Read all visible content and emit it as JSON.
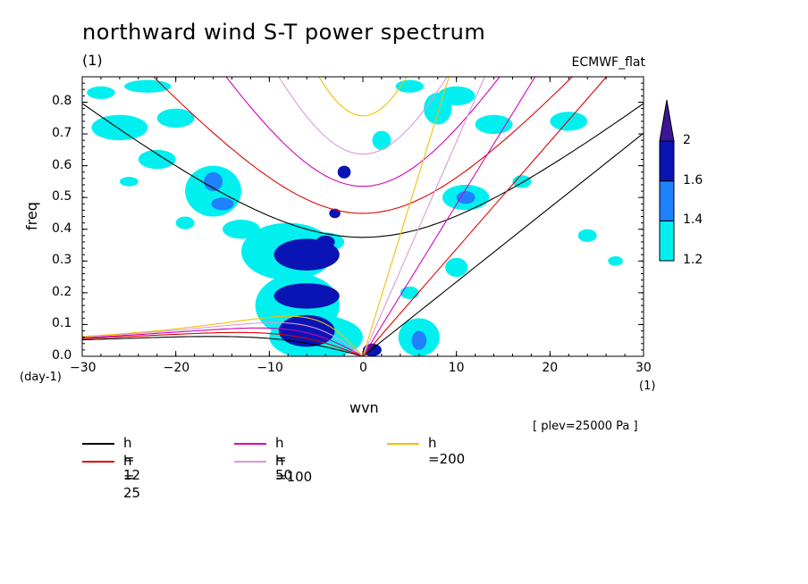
{
  "chart_data": {
    "type": "contour",
    "title": "northward wind S-T power spectrum",
    "units_label": "(1)",
    "source": "ECMWF_flat",
    "plev": "[ plev=25000 Pa ]",
    "xlabel": "wvn",
    "ylabel": "freq",
    "x_unit": "(1)",
    "y_unit": "(day-1)",
    "xlim": [
      -30,
      30
    ],
    "ylim": [
      0,
      0.88
    ],
    "xticks": [
      -30,
      -20,
      -10,
      0,
      10,
      20,
      30
    ],
    "yticks": [
      0.0,
      0.1,
      0.2,
      0.3,
      0.4,
      0.5,
      0.6,
      0.7,
      0.8
    ],
    "colorbar": {
      "levels": [
        "1.2",
        "1.4",
        "1.6",
        "2"
      ],
      "colors": [
        "#00f0f0",
        "#1e82ff",
        "#0a14b4",
        "#3c1496"
      ]
    },
    "dispersion_curves": [
      {
        "label": "h = 12",
        "h": 12,
        "color": "#000000"
      },
      {
        "label": "h = 25",
        "h": 25,
        "color": "#e00000"
      },
      {
        "label": "h = 50",
        "h": 50,
        "color": "#d400b4"
      },
      {
        "label": "h =100",
        "h": 100,
        "color": "#d89bd8"
      },
      {
        "label": "h =200",
        "h": 200,
        "color": "#f0c000"
      }
    ],
    "blobs": [
      {
        "x": -6,
        "y": 0.32,
        "rx": 3.5,
        "ry": 0.05,
        "level": 3
      },
      {
        "x": -6,
        "y": 0.19,
        "rx": 3.5,
        "ry": 0.04,
        "level": 3
      },
      {
        "x": -6,
        "y": 0.08,
        "rx": 3.0,
        "ry": 0.05,
        "level": 3
      },
      {
        "x": -4,
        "y": 0.36,
        "rx": 1.0,
        "ry": 0.02,
        "level": 3
      },
      {
        "x": -2,
        "y": 0.58,
        "rx": 0.7,
        "ry": 0.02,
        "level": 3
      },
      {
        "x": -3,
        "y": 0.45,
        "rx": 0.6,
        "ry": 0.015,
        "level": 3
      },
      {
        "x": 1,
        "y": 0.02,
        "rx": 1.0,
        "ry": 0.02,
        "level": 3
      },
      {
        "x": 6,
        "y": 0.05,
        "rx": 0.8,
        "ry": 0.03,
        "level": 2
      },
      {
        "x": -16,
        "y": 0.55,
        "rx": 1.0,
        "ry": 0.03,
        "level": 2
      },
      {
        "x": -15,
        "y": 0.48,
        "rx": 1.2,
        "ry": 0.02,
        "level": 2
      },
      {
        "x": 11,
        "y": 0.5,
        "rx": 1.0,
        "ry": 0.02,
        "level": 2
      },
      {
        "x": -8,
        "y": 0.33,
        "rx": 5.0,
        "ry": 0.09,
        "level": 1
      },
      {
        "x": -7,
        "y": 0.16,
        "rx": 4.5,
        "ry": 0.1,
        "level": 1
      },
      {
        "x": -5,
        "y": 0.06,
        "rx": 5.0,
        "ry": 0.07,
        "level": 1
      },
      {
        "x": -4,
        "y": 0.36,
        "rx": 2.0,
        "ry": 0.03,
        "level": 1
      },
      {
        "x": 6,
        "y": 0.06,
        "rx": 2.2,
        "ry": 0.06,
        "level": 1
      },
      {
        "x": -16,
        "y": 0.52,
        "rx": 3.0,
        "ry": 0.08,
        "level": 1
      },
      {
        "x": -22,
        "y": 0.62,
        "rx": 2.0,
        "ry": 0.03,
        "level": 1
      },
      {
        "x": -26,
        "y": 0.72,
        "rx": 3.0,
        "ry": 0.04,
        "level": 1
      },
      {
        "x": -23,
        "y": 0.85,
        "rx": 2.5,
        "ry": 0.02,
        "level": 1
      },
      {
        "x": 11,
        "y": 0.5,
        "rx": 2.5,
        "ry": 0.04,
        "level": 1
      },
      {
        "x": 8,
        "y": 0.78,
        "rx": 1.5,
        "ry": 0.05,
        "level": 1
      },
      {
        "x": 5,
        "y": 0.85,
        "rx": 1.5,
        "ry": 0.02,
        "level": 1
      },
      {
        "x": 10,
        "y": 0.82,
        "rx": 2.0,
        "ry": 0.03,
        "level": 1
      },
      {
        "x": 14,
        "y": 0.73,
        "rx": 2.0,
        "ry": 0.03,
        "level": 1
      },
      {
        "x": 22,
        "y": 0.74,
        "rx": 2.0,
        "ry": 0.03,
        "level": 1
      },
      {
        "x": 5,
        "y": 0.2,
        "rx": 1.0,
        "ry": 0.02,
        "level": 1
      },
      {
        "x": 10,
        "y": 0.28,
        "rx": 1.2,
        "ry": 0.03,
        "level": 1
      },
      {
        "x": 2,
        "y": 0.68,
        "rx": 1.0,
        "ry": 0.03,
        "level": 1
      },
      {
        "x": -28,
        "y": 0.83,
        "rx": 1.5,
        "ry": 0.02,
        "level": 1
      },
      {
        "x": -20,
        "y": 0.75,
        "rx": 2.0,
        "ry": 0.03,
        "level": 1
      },
      {
        "x": -13,
        "y": 0.4,
        "rx": 2.0,
        "ry": 0.03,
        "level": 1
      },
      {
        "x": 24,
        "y": 0.38,
        "rx": 1.0,
        "ry": 0.02,
        "level": 1
      },
      {
        "x": -19,
        "y": 0.42,
        "rx": 1.0,
        "ry": 0.02,
        "level": 1
      },
      {
        "x": 17,
        "y": 0.55,
        "rx": 1.0,
        "ry": 0.02,
        "level": 1
      },
      {
        "x": -25,
        "y": 0.55,
        "rx": 1.0,
        "ry": 0.015,
        "level": 1
      },
      {
        "x": 27,
        "y": 0.3,
        "rx": 0.8,
        "ry": 0.015,
        "level": 1
      }
    ]
  },
  "legend_items": [
    {
      "label": "h = 12",
      "color": "#000000"
    },
    {
      "label": "h = 25",
      "color": "#e00000"
    },
    {
      "label": "h = 50",
      "color": "#d400b4"
    },
    {
      "label": "h =100",
      "color": "#d89bd8"
    },
    {
      "label": "h =200",
      "color": "#f0c000"
    }
  ]
}
